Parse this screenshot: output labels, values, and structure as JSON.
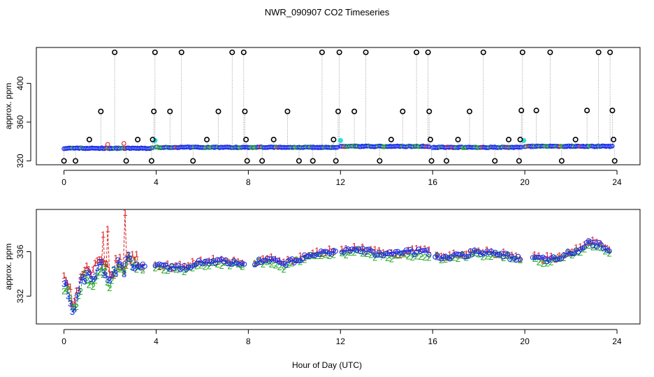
{
  "chart_data": [
    {
      "type": "scatter",
      "title": "NWR_090907  CO2 Timeseries",
      "xlabel": "",
      "ylabel": "approx. ppm",
      "xlim": [
        -1.2,
        25
      ],
      "ylim": [
        316,
        437
      ],
      "x_ticks": [
        0,
        4,
        8,
        12,
        16,
        20,
        24
      ],
      "y_ticks": [
        320,
        360,
        400
      ],
      "x_tick_labels": [
        "0",
        "4",
        "8",
        "12",
        "16",
        "20",
        "24"
      ],
      "y_tick_labels": [
        "320",
        "360",
        "400"
      ],
      "colors": {
        "baseline": "#1a2ee8",
        "green": "#22aa22",
        "red": "#dd2222",
        "cyan": "#33dddd",
        "spike": "#000000"
      },
      "spikes": [
        {
          "x": 0.0,
          "y": 320
        },
        {
          "x": 0.5,
          "y": 320
        },
        {
          "x": 1.1,
          "y": 342
        },
        {
          "x": 1.6,
          "y": 371
        },
        {
          "x": 2.2,
          "y": 432
        },
        {
          "x": 2.7,
          "y": 320
        },
        {
          "x": 3.2,
          "y": 342
        },
        {
          "x": 3.8,
          "y": 320
        },
        {
          "x": 3.9,
          "y": 371
        },
        {
          "x": 3.95,
          "y": 432
        },
        {
          "x": 3.85,
          "y": 342
        },
        {
          "x": 4.6,
          "y": 371
        },
        {
          "x": 5.1,
          "y": 432
        },
        {
          "x": 5.6,
          "y": 320
        },
        {
          "x": 6.2,
          "y": 342
        },
        {
          "x": 6.7,
          "y": 371
        },
        {
          "x": 7.3,
          "y": 432
        },
        {
          "x": 7.8,
          "y": 432
        },
        {
          "x": 7.85,
          "y": 371
        },
        {
          "x": 7.9,
          "y": 342
        },
        {
          "x": 7.95,
          "y": 320
        },
        {
          "x": 8.6,
          "y": 320
        },
        {
          "x": 9.1,
          "y": 342
        },
        {
          "x": 9.7,
          "y": 371
        },
        {
          "x": 10.2,
          "y": 320
        },
        {
          "x": 10.8,
          "y": 320
        },
        {
          "x": 11.2,
          "y": 432
        },
        {
          "x": 11.7,
          "y": 342
        },
        {
          "x": 11.8,
          "y": 320
        },
        {
          "x": 11.9,
          "y": 371
        },
        {
          "x": 11.95,
          "y": 432
        },
        {
          "x": 12.6,
          "y": 371
        },
        {
          "x": 13.1,
          "y": 432
        },
        {
          "x": 13.7,
          "y": 320
        },
        {
          "x": 14.2,
          "y": 342
        },
        {
          "x": 14.7,
          "y": 371
        },
        {
          "x": 15.3,
          "y": 432
        },
        {
          "x": 15.8,
          "y": 432
        },
        {
          "x": 15.85,
          "y": 371
        },
        {
          "x": 15.9,
          "y": 342
        },
        {
          "x": 15.95,
          "y": 320
        },
        {
          "x": 16.6,
          "y": 320
        },
        {
          "x": 17.1,
          "y": 342
        },
        {
          "x": 17.6,
          "y": 371
        },
        {
          "x": 18.2,
          "y": 432
        },
        {
          "x": 18.7,
          "y": 320
        },
        {
          "x": 19.3,
          "y": 342
        },
        {
          "x": 19.75,
          "y": 320
        },
        {
          "x": 19.8,
          "y": 342
        },
        {
          "x": 19.85,
          "y": 372
        },
        {
          "x": 19.9,
          "y": 432
        },
        {
          "x": 20.5,
          "y": 372
        },
        {
          "x": 21.1,
          "y": 432
        },
        {
          "x": 21.6,
          "y": 320
        },
        {
          "x": 22.2,
          "y": 342
        },
        {
          "x": 22.7,
          "y": 372
        },
        {
          "x": 23.2,
          "y": 432
        },
        {
          "x": 23.7,
          "y": 432
        },
        {
          "x": 23.8,
          "y": 372
        },
        {
          "x": 23.85,
          "y": 342
        },
        {
          "x": 23.9,
          "y": 320
        }
      ],
      "baseline_segments": [
        {
          "x_start": 0.0,
          "x_end": 3.9,
          "level": 333
        },
        {
          "x_start": 4.0,
          "x_end": 11.9,
          "level": 334
        },
        {
          "x_start": 12.0,
          "x_end": 15.9,
          "level": 335
        },
        {
          "x_start": 16.0,
          "x_end": 19.9,
          "level": 334
        },
        {
          "x_start": 20.0,
          "x_end": 23.8,
          "level": 335
        }
      ],
      "cyan_points": [
        {
          "x": 3.95,
          "y": 341
        },
        {
          "x": 12.0,
          "y": 341
        },
        {
          "x": 19.95,
          "y": 341
        }
      ],
      "red_points": [
        {
          "x": 1.9,
          "y": 337
        },
        {
          "x": 2.6,
          "y": 338
        }
      ]
    },
    {
      "type": "line",
      "title": "",
      "xlabel": "Hour of Day (UTC)",
      "ylabel": "approx. ppm",
      "xlim": [
        -1.2,
        25
      ],
      "ylim": [
        329.5,
        339.8
      ],
      "x_ticks": [
        0,
        4,
        8,
        12,
        16,
        20,
        24
      ],
      "y_ticks": [
        332,
        336
      ],
      "x_tick_labels": [
        "0",
        "4",
        "8",
        "12",
        "16",
        "20",
        "24"
      ],
      "y_tick_labels": [
        "332",
        "336"
      ],
      "series": [
        {
          "name": "1",
          "color": "#dd2222"
        },
        {
          "name": "2",
          "color": "#22aa22"
        },
        {
          "name": "3",
          "color": "#1a2ee8"
        }
      ],
      "anchors": [
        [
          0.0,
          333.0
        ],
        [
          0.2,
          332.4
        ],
        [
          0.4,
          330.8
        ],
        [
          0.6,
          332.2
        ],
        [
          0.8,
          333.5
        ],
        [
          1.0,
          334.0
        ],
        [
          1.2,
          333.2
        ],
        [
          1.5,
          334.6
        ],
        [
          1.8,
          334.4
        ],
        [
          2.0,
          333.4
        ],
        [
          2.2,
          334.2
        ],
        [
          2.4,
          334.8
        ],
        [
          2.6,
          334.2
        ],
        [
          2.8,
          335.5
        ],
        [
          3.0,
          335.0
        ],
        [
          3.3,
          334.7
        ],
        [
          3.6,
          334.6
        ],
        [
          4.0,
          334.7
        ],
        [
          4.6,
          334.6
        ],
        [
          5.2,
          334.5
        ],
        [
          5.8,
          335.1
        ],
        [
          6.5,
          335.1
        ],
        [
          7.0,
          335.2
        ],
        [
          7.5,
          334.9
        ],
        [
          7.9,
          335.0
        ],
        [
          8.3,
          335.0
        ],
        [
          8.8,
          335.4
        ],
        [
          9.0,
          335.3
        ],
        [
          9.5,
          334.8
        ],
        [
          10.0,
          335.2
        ],
        [
          10.5,
          335.6
        ],
        [
          11.0,
          335.8
        ],
        [
          11.5,
          335.9
        ],
        [
          11.9,
          336.0
        ],
        [
          12.3,
          336.1
        ],
        [
          12.8,
          336.2
        ],
        [
          13.3,
          336.0
        ],
        [
          13.8,
          335.7
        ],
        [
          14.3,
          335.8
        ],
        [
          14.8,
          335.9
        ],
        [
          15.3,
          336.0
        ],
        [
          15.9,
          335.9
        ],
        [
          16.4,
          335.5
        ],
        [
          17.0,
          335.6
        ],
        [
          17.5,
          335.8
        ],
        [
          18.0,
          336.0
        ],
        [
          18.5,
          335.9
        ],
        [
          19.0,
          335.7
        ],
        [
          19.5,
          335.5
        ],
        [
          19.9,
          335.4
        ],
        [
          20.3,
          335.5
        ],
        [
          20.8,
          335.3
        ],
        [
          21.3,
          335.4
        ],
        [
          21.8,
          335.8
        ],
        [
          22.3,
          336.1
        ],
        [
          22.8,
          336.8
        ],
        [
          23.2,
          336.6
        ],
        [
          23.7,
          336.2
        ]
      ],
      "gaps": [
        [
          3.55,
          3.95
        ],
        [
          7.85,
          8.25
        ],
        [
          11.85,
          12.05
        ],
        [
          15.85,
          16.05
        ],
        [
          19.85,
          20.25
        ]
      ],
      "red_spikes": [
        {
          "x": 1.7,
          "y": 337.5
        },
        {
          "x": 1.9,
          "y": 338.0
        },
        {
          "x": 2.65,
          "y": 339.5
        }
      ]
    }
  ]
}
